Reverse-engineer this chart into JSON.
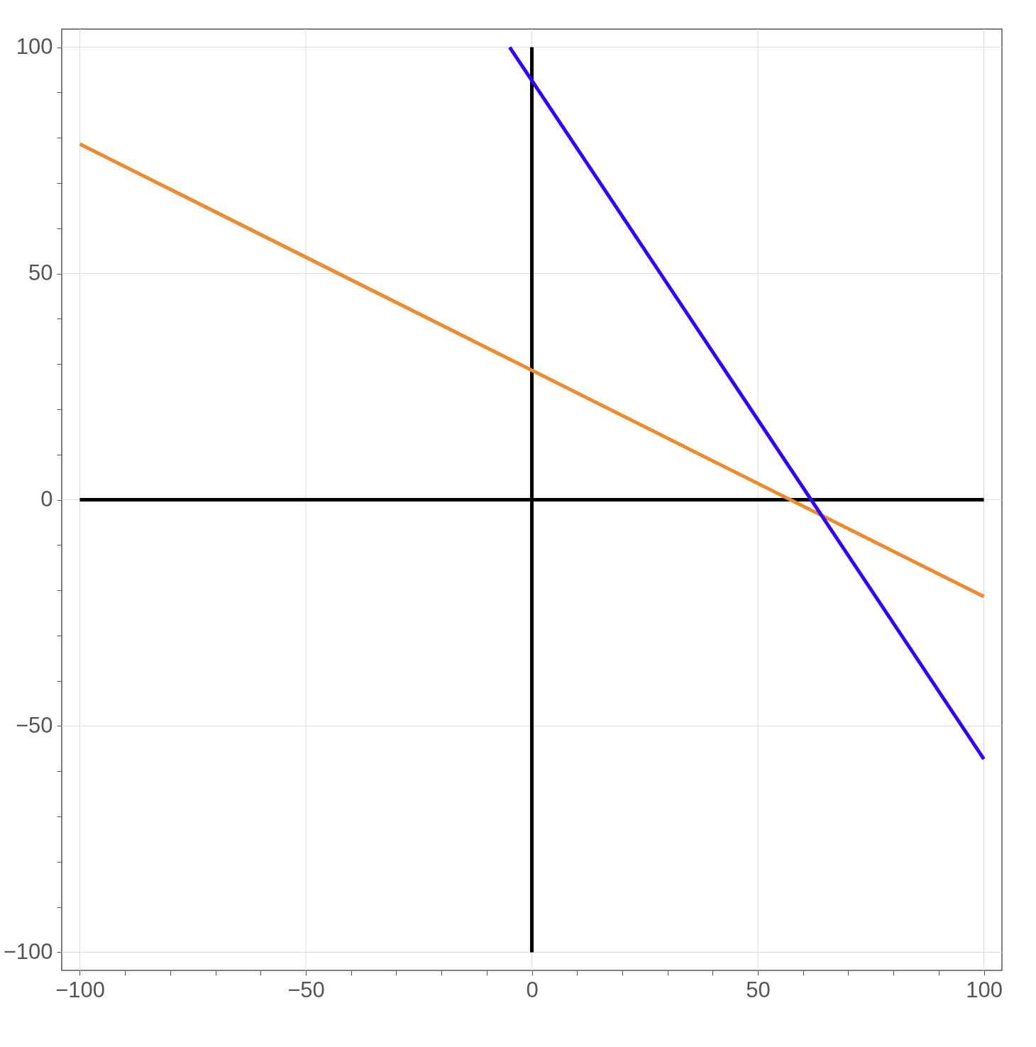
{
  "chart_data": {
    "type": "line",
    "xlim": [
      -104,
      104
    ],
    "ylim": [
      -104,
      104
    ],
    "xticks": [
      {
        "value": -100,
        "label": "−100"
      },
      {
        "value": -90,
        "label": null
      },
      {
        "value": -80,
        "label": null
      },
      {
        "value": -70,
        "label": null
      },
      {
        "value": -60,
        "label": null
      },
      {
        "value": -50,
        "label": "−50"
      },
      {
        "value": -40,
        "label": null
      },
      {
        "value": -30,
        "label": null
      },
      {
        "value": -20,
        "label": null
      },
      {
        "value": -10,
        "label": null
      },
      0,
      {
        "value": 10,
        "label": null
      },
      {
        "value": 20,
        "label": null
      },
      {
        "value": 30,
        "label": null
      },
      {
        "value": 40,
        "label": null
      },
      50,
      {
        "value": 60,
        "label": null
      },
      {
        "value": 70,
        "label": null
      },
      {
        "value": 80,
        "label": null
      },
      {
        "value": 90,
        "label": null
      },
      100
    ],
    "yticks": [
      {
        "value": -100,
        "label": "−100"
      },
      {
        "value": -90,
        "label": null
      },
      {
        "value": -80,
        "label": null
      },
      {
        "value": -70,
        "label": null
      },
      {
        "value": -60,
        "label": null
      },
      {
        "value": -50,
        "label": "−50"
      },
      {
        "value": -40,
        "label": null
      },
      {
        "value": -30,
        "label": null
      },
      {
        "value": -20,
        "label": null
      },
      {
        "value": -10,
        "label": null
      },
      0,
      {
        "value": 10,
        "label": null
      },
      {
        "value": 20,
        "label": null
      },
      {
        "value": 30,
        "label": null
      },
      {
        "value": 40,
        "label": null
      },
      50,
      {
        "value": 60,
        "label": null
      },
      {
        "value": 70,
        "label": null
      },
      {
        "value": 80,
        "label": null
      },
      {
        "value": 90,
        "label": null
      },
      100
    ],
    "grid": true,
    "line_style": "solid",
    "marker": "none",
    "series": [
      {
        "color": "#000000",
        "x": [
          -100,
          100
        ],
        "values": [
          0,
          0
        ]
      },
      {
        "color": "#000000",
        "x": [
          0,
          0
        ],
        "values": [
          -100,
          100
        ]
      },
      {
        "color": "#ef8a2e",
        "x": [
          -100,
          100
        ],
        "values": [
          78.6,
          -21.4
        ]
      },
      {
        "color": "#3300ff",
        "x": [
          -4.9,
          100
        ],
        "values": [
          100,
          -57.3
        ]
      }
    ]
  }
}
